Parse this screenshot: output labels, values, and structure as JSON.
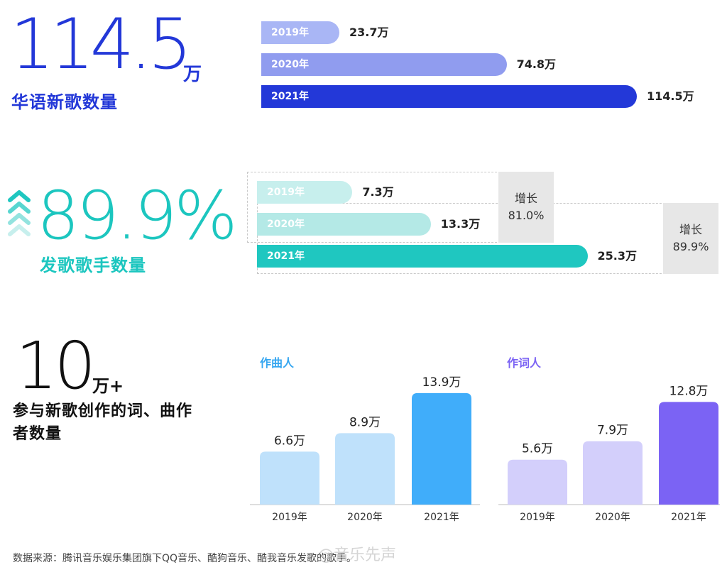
{
  "section1": {
    "big_number": "114.5",
    "unit": "万",
    "label": "华语新歌数量",
    "bars": [
      {
        "year": "2019年",
        "value": 23.7,
        "value_label": "23.7万",
        "color": "#a9b6f5"
      },
      {
        "year": "2020年",
        "value": 74.8,
        "value_label": "74.8万",
        "color": "#909cef"
      },
      {
        "year": "2021年",
        "value": 114.5,
        "value_label": "114.5万",
        "color": "#2338d8"
      }
    ],
    "number_color": "#2338d8"
  },
  "section2": {
    "big_number": "89.9%",
    "label": "发歌歌手数量",
    "number_color": "#1cc6bf",
    "bars": [
      {
        "year": "2019年",
        "value": 7.3,
        "value_label": "7.3万",
        "color": "#c7efed"
      },
      {
        "year": "2020年",
        "value": 13.3,
        "value_label": "13.3万",
        "color": "#b4e9e6"
      },
      {
        "year": "2021年",
        "value": 25.3,
        "value_label": "25.3万",
        "color": "#1fc7c0"
      }
    ],
    "growth": [
      {
        "title": "增长",
        "value": "81.0%"
      },
      {
        "title": "增长",
        "value": "89.9%"
      }
    ]
  },
  "section3": {
    "big_number": "10",
    "unit": "万+",
    "label": "参与新歌创作的词、曲作者数量"
  },
  "chart_data": [
    {
      "type": "bar",
      "title": "作曲人",
      "categories": [
        "2019年",
        "2020年",
        "2021年"
      ],
      "values": [
        6.6,
        8.9,
        13.9
      ],
      "data_labels": [
        "6.6万",
        "8.9万",
        "13.9万"
      ],
      "colors": [
        "#bfe1fb",
        "#bfe1fb",
        "#40adfa"
      ],
      "title_color": "#35a6f0"
    },
    {
      "type": "bar",
      "title": "作词人",
      "categories": [
        "2019年",
        "2020年",
        "2021年"
      ],
      "values": [
        5.6,
        7.9,
        12.8
      ],
      "data_labels": [
        "5.6万",
        "7.9万",
        "12.8万"
      ],
      "colors": [
        "#d3cffb",
        "#d3cffb",
        "#7b63f4"
      ],
      "title_color": "#7b63f4"
    }
  ],
  "footer": "数据来源：腾讯音乐娱乐集团旗下QQ音乐、酷狗音乐、酷我音乐发歌的歌手。",
  "watermark": "@音乐先声"
}
